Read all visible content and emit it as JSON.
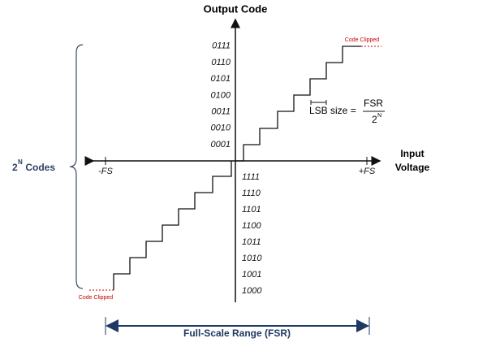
{
  "title": "Output Code",
  "x_axis": {
    "label_line1": "Input",
    "label_line2": "Voltage",
    "neg_end": "-FS",
    "pos_end": "+FS"
  },
  "positive_codes": [
    "0001",
    "0010",
    "0011",
    "0100",
    "0101",
    "0110",
    "0111"
  ],
  "negative_codes": [
    "1111",
    "1110",
    "1101",
    "1100",
    "1011",
    "1010",
    "1001",
    "1000"
  ],
  "clip_top": "Code Clipped",
  "clip_bottom": "Code Clipped",
  "lsb": {
    "label": "LSB size =",
    "numerator": "FSR",
    "denominator_base": "2",
    "denominator_exp": "N"
  },
  "codes_brace": {
    "base": "2",
    "exp": "N",
    "rest": " Codes"
  },
  "range_label": "Full-Scale Range (FSR)"
}
